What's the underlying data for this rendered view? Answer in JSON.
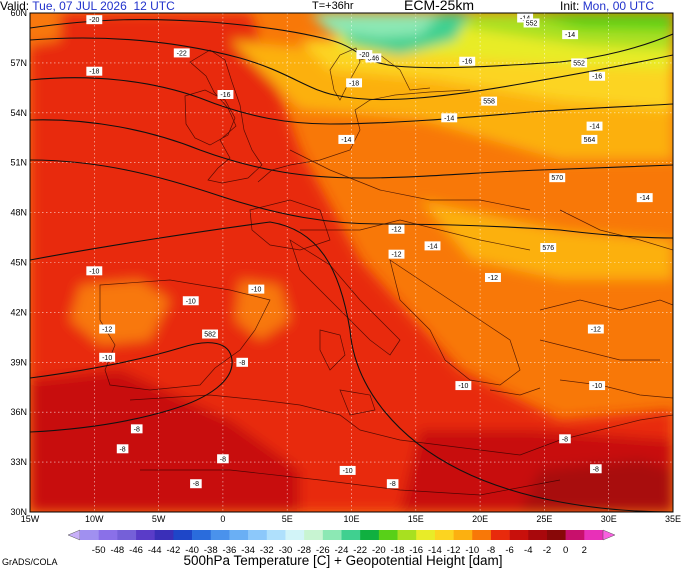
{
  "header": {
    "valid_label": "Valid:",
    "valid_value": "Tue, 07 JUL 2026",
    "valid_time": "12 UTC",
    "forecast_hour": "T=+36hr",
    "model": "ECM-25km",
    "init_label": "Init:",
    "init_value": "Mon, 00 UTC"
  },
  "map": {
    "lat_labels": [
      "60N",
      "57N",
      "54N",
      "51N",
      "48N",
      "45N",
      "42N",
      "39N",
      "36N",
      "33N",
      "30N"
    ],
    "lon_labels": [
      "15W",
      "10W",
      "5W",
      "0",
      "5E",
      "10E",
      "15E",
      "20E",
      "25E",
      "30E",
      "35E"
    ],
    "height_contours": [
      "576",
      "570",
      "564",
      "558",
      "552"
    ],
    "contour_labels": [
      {
        "text": "-20",
        "lon": -10.0,
        "lat": 59.6
      },
      {
        "text": "-22",
        "lon": -3.2,
        "lat": 57.6
      },
      {
        "text": "-18",
        "lon": -10.0,
        "lat": 56.5
      },
      {
        "text": "-16",
        "lon": 0.2,
        "lat": 55.1
      },
      {
        "text": "-14",
        "lon": 23.5,
        "lat": 59.7
      },
      {
        "text": "-14",
        "lon": 27.0,
        "lat": 58.7
      },
      {
        "text": "552",
        "lon": 24.0,
        "lat": 59.4
      },
      {
        "text": "546",
        "lon": 11.7,
        "lat": 57.3
      },
      {
        "text": "-20",
        "lon": 11.0,
        "lat": 57.5
      },
      {
        "text": "-18",
        "lon": 10.2,
        "lat": 55.8
      },
      {
        "text": "-16",
        "lon": 19.0,
        "lat": 57.1
      },
      {
        "text": "552",
        "lon": 27.7,
        "lat": 57.0
      },
      {
        "text": "-16",
        "lon": 29.1,
        "lat": 56.2
      },
      {
        "text": "558",
        "lon": 20.7,
        "lat": 54.7
      },
      {
        "text": "-14",
        "lon": 17.6,
        "lat": 53.7
      },
      {
        "text": "-14",
        "lon": 28.9,
        "lat": 53.2
      },
      {
        "text": "564",
        "lon": 28.5,
        "lat": 52.4
      },
      {
        "text": "-14",
        "lon": 9.6,
        "lat": 52.4
      },
      {
        "text": "570",
        "lon": 26.0,
        "lat": 50.1
      },
      {
        "text": "-14",
        "lon": 32.8,
        "lat": 48.9
      },
      {
        "text": "-12",
        "lon": 13.5,
        "lat": 47.0
      },
      {
        "text": "-14",
        "lon": 16.3,
        "lat": 46.0
      },
      {
        "text": "576",
        "lon": 25.3,
        "lat": 45.9
      },
      {
        "text": "-12",
        "lon": 13.5,
        "lat": 45.5
      },
      {
        "text": "-10",
        "lon": -10.0,
        "lat": 44.5
      },
      {
        "text": "-12",
        "lon": 21.0,
        "lat": 44.1
      },
      {
        "text": "-10",
        "lon": 2.6,
        "lat": 43.4
      },
      {
        "text": "-10",
        "lon": -2.5,
        "lat": 42.7
      },
      {
        "text": "-12",
        "lon": -9.0,
        "lat": 41.0
      },
      {
        "text": "582",
        "lon": -1.0,
        "lat": 40.7
      },
      {
        "text": "-12",
        "lon": 29.0,
        "lat": 41.0
      },
      {
        "text": "-10",
        "lon": -9.0,
        "lat": 39.3
      },
      {
        "text": "-8",
        "lon": 1.5,
        "lat": 39.0
      },
      {
        "text": "-10",
        "lon": 18.7,
        "lat": 37.6
      },
      {
        "text": "-10",
        "lon": 29.1,
        "lat": 37.6
      },
      {
        "text": "-8",
        "lon": -6.7,
        "lat": 35.0
      },
      {
        "text": "-8",
        "lon": 26.6,
        "lat": 34.4
      },
      {
        "text": "-8",
        "lon": -7.8,
        "lat": 33.8
      },
      {
        "text": "-8",
        "lon": 0.0,
        "lat": 33.2
      },
      {
        "text": "-8",
        "lon": 29.0,
        "lat": 32.6
      },
      {
        "text": "-10",
        "lon": 9.7,
        "lat": 32.5
      },
      {
        "text": "-8",
        "lon": -2.1,
        "lat": 31.7
      },
      {
        "text": "-8",
        "lon": 13.2,
        "lat": 31.7
      }
    ]
  },
  "colorbar": {
    "labels": [
      "-50",
      "-48",
      "-46",
      "-44",
      "-42",
      "-40",
      "-38",
      "-36",
      "-34",
      "-32",
      "-30",
      "-28",
      "-26",
      "-24",
      "-22",
      "-20",
      "-18",
      "-16",
      "-14",
      "-12",
      "-10",
      "-8",
      "-6",
      "-4",
      "-2",
      "0",
      "2"
    ],
    "colors": [
      "#a090f0",
      "#8a70e8",
      "#7560d8",
      "#5a3cc8",
      "#3a2fb8",
      "#1e46c8",
      "#2a6cdc",
      "#4a92ec",
      "#6aaff4",
      "#8cc8fa",
      "#afe0fc",
      "#d2f4f8",
      "#c8f4d2",
      "#8ce8b4",
      "#40d090",
      "#10b040",
      "#58d018",
      "#a8e020",
      "#e8ec28",
      "#fcd420",
      "#fcb010",
      "#f87808",
      "#e82a0c",
      "#c8100c",
      "#a8080c",
      "#880808",
      "#c8106c",
      "#e830b8"
    ],
    "caption": "500hPa Temperature [C] + Geopotential Height [dam]",
    "credit": "GrADS/COLA"
  }
}
